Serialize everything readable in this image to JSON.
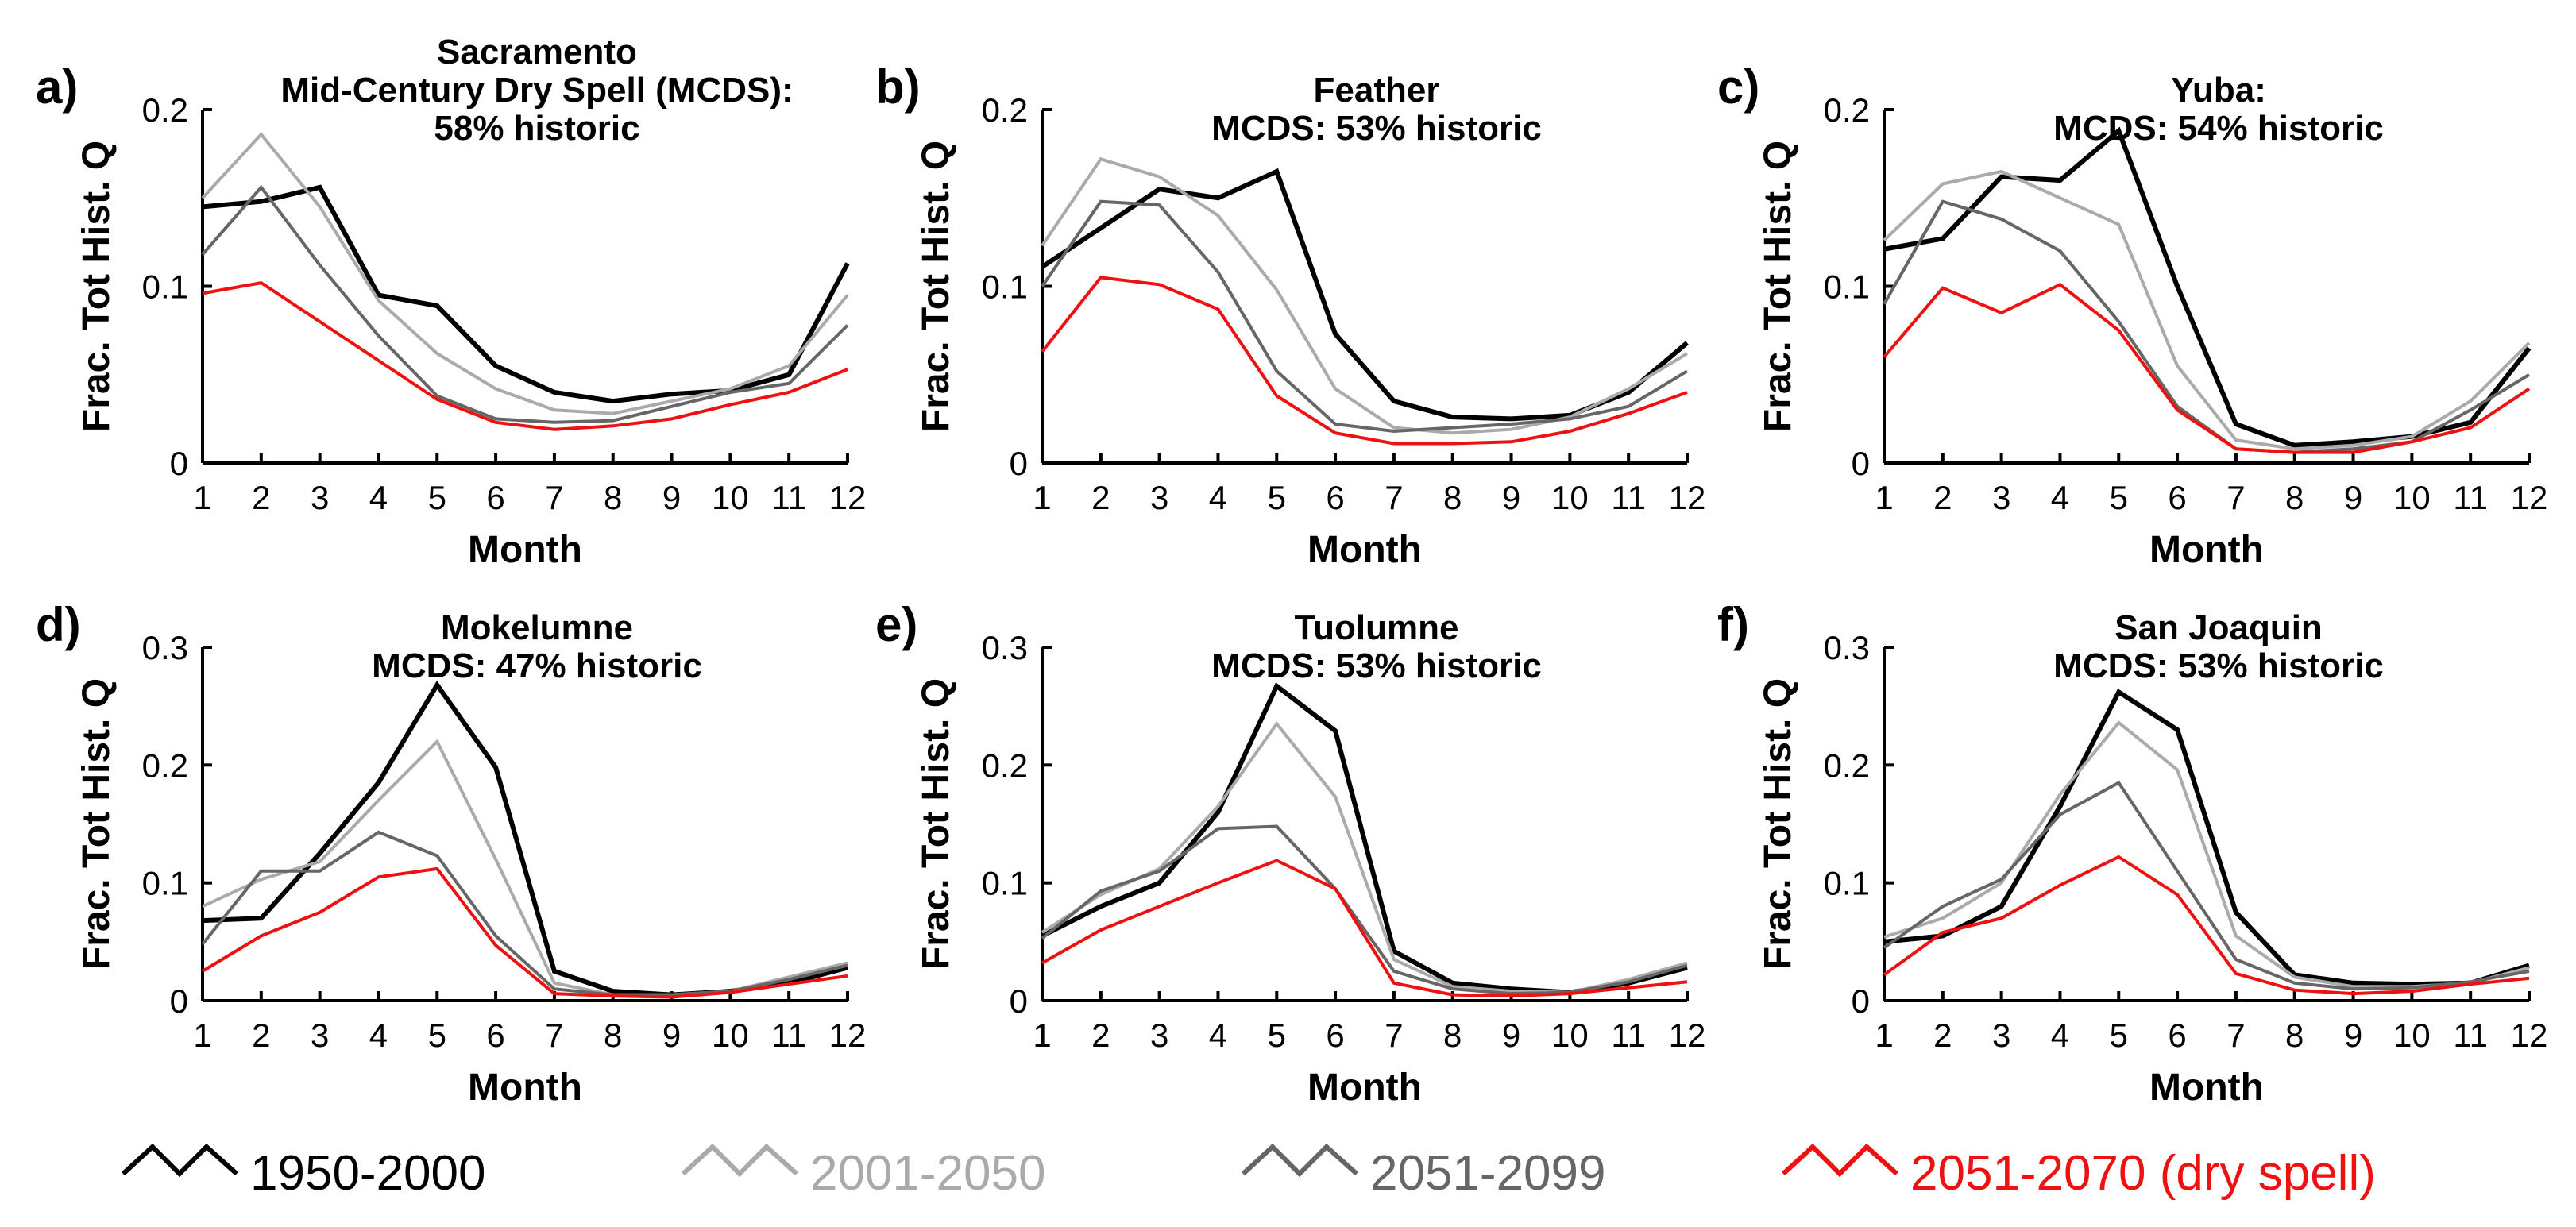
{
  "chart_data": {
    "type": "line",
    "xlabel": "Month",
    "ylabel": "Frac. Tot Hist. Q",
    "x": [
      1,
      2,
      3,
      4,
      5,
      6,
      7,
      8,
      9,
      10,
      11,
      12
    ],
    "series_styles": [
      {
        "name": "1950-2000",
        "color": "#000000"
      },
      {
        "name": "2001-2050",
        "color": "#aaaaaa"
      },
      {
        "name": "2051-2099",
        "color": "#666666"
      },
      {
        "name": "2051-2070 (dry spell)",
        "color": "#ee1111"
      }
    ],
    "legend": [
      {
        "label": "1950-2000",
        "color": "#000000"
      },
      {
        "label": "2001-2050",
        "color": "#aaaaaa"
      },
      {
        "label": "2051-2099",
        "color": "#666666"
      },
      {
        "label": "2051-2070 (dry spell)",
        "color": "#ee1111"
      }
    ],
    "panels": [
      {
        "letter": "a)",
        "title": [
          "Sacramento",
          "Mid-Century Dry Spell (MCDS):",
          "58% historic"
        ],
        "ylim": [
          0,
          0.2
        ],
        "yticks": [
          "0",
          "0.1",
          "0.2"
        ],
        "yticks_values": [
          0,
          0.1,
          0.2
        ],
        "series": [
          {
            "name": "1950-2000",
            "values": [
              0.145,
              0.148,
              0.156,
              0.095,
              0.089,
              0.055,
              0.04,
              0.035,
              0.039,
              0.041,
              0.05,
              0.113
            ]
          },
          {
            "name": "2001-2050",
            "values": [
              0.15,
              0.186,
              0.145,
              0.092,
              0.062,
              0.042,
              0.03,
              0.028,
              0.035,
              0.042,
              0.055,
              0.095
            ]
          },
          {
            "name": "2051-2099",
            "values": [
              0.118,
              0.156,
              0.112,
              0.072,
              0.038,
              0.025,
              0.023,
              0.024,
              0.032,
              0.04,
              0.045,
              0.078
            ]
          },
          {
            "name": "2051-2070 (dry spell)",
            "values": [
              0.096,
              0.102,
              0.08,
              0.058,
              0.036,
              0.023,
              0.019,
              0.021,
              0.025,
              0.033,
              0.04,
              0.053
            ]
          }
        ]
      },
      {
        "letter": "b)",
        "title": [
          "Feather",
          "MCDS: 53% historic"
        ],
        "ylim": [
          0,
          0.2
        ],
        "yticks": [
          "0",
          "0.1",
          "0.2"
        ],
        "yticks_values": [
          0,
          0.1,
          0.2
        ],
        "series": [
          {
            "name": "1950-2000",
            "values": [
              0.111,
              0.133,
              0.155,
              0.15,
              0.165,
              0.073,
              0.035,
              0.026,
              0.025,
              0.027,
              0.04,
              0.068
            ]
          },
          {
            "name": "2001-2050",
            "values": [
              0.123,
              0.172,
              0.162,
              0.14,
              0.098,
              0.042,
              0.02,
              0.017,
              0.019,
              0.026,
              0.042,
              0.062
            ]
          },
          {
            "name": "2051-2099",
            "values": [
              0.1,
              0.148,
              0.146,
              0.108,
              0.052,
              0.022,
              0.018,
              0.02,
              0.022,
              0.025,
              0.032,
              0.052
            ]
          },
          {
            "name": "2051-2070 (dry spell)",
            "values": [
              0.063,
              0.105,
              0.101,
              0.087,
              0.038,
              0.017,
              0.011,
              0.011,
              0.012,
              0.018,
              0.028,
              0.04
            ]
          }
        ]
      },
      {
        "letter": "c)",
        "title": [
          "Yuba:",
          "MCDS: 54% historic"
        ],
        "ylim": [
          0,
          0.2
        ],
        "yticks": [
          "0",
          "0.1",
          "0.2"
        ],
        "yticks_values": [
          0,
          0.1,
          0.2
        ],
        "series": [
          {
            "name": "1950-2000",
            "values": [
              0.121,
              0.127,
              0.162,
              0.16,
              0.188,
              0.1,
              0.022,
              0.01,
              0.012,
              0.015,
              0.023,
              0.065
            ]
          },
          {
            "name": "2001-2050",
            "values": [
              0.126,
              0.158,
              0.165,
              0.15,
              0.135,
              0.055,
              0.013,
              0.008,
              0.01,
              0.015,
              0.035,
              0.068
            ]
          },
          {
            "name": "2051-2099",
            "values": [
              0.09,
              0.148,
              0.138,
              0.12,
              0.08,
              0.032,
              0.008,
              0.006,
              0.008,
              0.012,
              0.03,
              0.05
            ]
          },
          {
            "name": "2051-2070 (dry spell)",
            "values": [
              0.06,
              0.099,
              0.085,
              0.101,
              0.075,
              0.03,
              0.008,
              0.006,
              0.006,
              0.012,
              0.02,
              0.042
            ]
          }
        ]
      },
      {
        "letter": "d)",
        "title": [
          "Mokelumne",
          "MCDS: 47% historic"
        ],
        "ylim": [
          0,
          0.3
        ],
        "yticks": [
          "0",
          "0.1",
          "0.2",
          "0.3"
        ],
        "yticks_values": [
          0,
          0.1,
          0.2,
          0.3
        ],
        "series": [
          {
            "name": "1950-2000",
            "values": [
              0.068,
              0.07,
              0.125,
              0.185,
              0.268,
              0.198,
              0.025,
              0.008,
              0.005,
              0.008,
              0.015,
              0.028
            ]
          },
          {
            "name": "2001-2050",
            "values": [
              0.08,
              0.103,
              0.118,
              0.17,
              0.22,
              0.12,
              0.015,
              0.005,
              0.005,
              0.008,
              0.02,
              0.032
            ]
          },
          {
            "name": "2051-2099",
            "values": [
              0.048,
              0.11,
              0.11,
              0.143,
              0.123,
              0.055,
              0.01,
              0.005,
              0.005,
              0.008,
              0.018,
              0.03
            ]
          },
          {
            "name": "2051-2070 (dry spell)",
            "values": [
              0.025,
              0.055,
              0.075,
              0.105,
              0.112,
              0.047,
              0.006,
              0.004,
              0.003,
              0.007,
              0.014,
              0.021
            ]
          }
        ]
      },
      {
        "letter": "e)",
        "title": [
          "Tuolumne",
          "MCDS: 53% historic"
        ],
        "ylim": [
          0,
          0.3
        ],
        "yticks": [
          "0",
          "0.1",
          "0.2",
          "0.3"
        ],
        "yticks_values": [
          0,
          0.1,
          0.2,
          0.3
        ],
        "series": [
          {
            "name": "1950-2000",
            "values": [
              0.055,
              0.08,
              0.1,
              0.16,
              0.267,
              0.229,
              0.042,
              0.015,
              0.01,
              0.007,
              0.015,
              0.028
            ]
          },
          {
            "name": "2001-2050",
            "values": [
              0.058,
              0.09,
              0.112,
              0.165,
              0.235,
              0.173,
              0.035,
              0.012,
              0.008,
              0.007,
              0.018,
              0.032
            ]
          },
          {
            "name": "2051-2099",
            "values": [
              0.053,
              0.093,
              0.11,
              0.146,
              0.148,
              0.095,
              0.025,
              0.01,
              0.006,
              0.007,
              0.016,
              0.03
            ]
          },
          {
            "name": "2051-2070 (dry spell)",
            "values": [
              0.032,
              0.06,
              0.08,
              0.1,
              0.119,
              0.095,
              0.015,
              0.005,
              0.004,
              0.006,
              0.011,
              0.016
            ]
          }
        ]
      },
      {
        "letter": "f)",
        "title": [
          "San Joaquin",
          "MCDS: 53% historic"
        ],
        "ylim": [
          0,
          0.3
        ],
        "yticks": [
          "0",
          "0.1",
          "0.2",
          "0.3"
        ],
        "yticks_values": [
          0,
          0.1,
          0.2,
          0.3
        ],
        "series": [
          {
            "name": "1950-2000",
            "values": [
              0.05,
              0.055,
              0.08,
              0.165,
              0.262,
              0.23,
              0.075,
              0.022,
              0.015,
              0.014,
              0.015,
              0.03
            ]
          },
          {
            "name": "2001-2050",
            "values": [
              0.054,
              0.07,
              0.1,
              0.175,
              0.236,
              0.196,
              0.055,
              0.02,
              0.012,
              0.012,
              0.015,
              0.028
            ]
          },
          {
            "name": "2051-2099",
            "values": [
              0.045,
              0.08,
              0.103,
              0.158,
              0.185,
              0.11,
              0.035,
              0.015,
              0.01,
              0.011,
              0.016,
              0.025
            ]
          },
          {
            "name": "2051-2070 (dry spell)",
            "values": [
              0.022,
              0.058,
              0.07,
              0.098,
              0.122,
              0.09,
              0.023,
              0.009,
              0.006,
              0.008,
              0.014,
              0.019
            ]
          }
        ]
      }
    ]
  }
}
